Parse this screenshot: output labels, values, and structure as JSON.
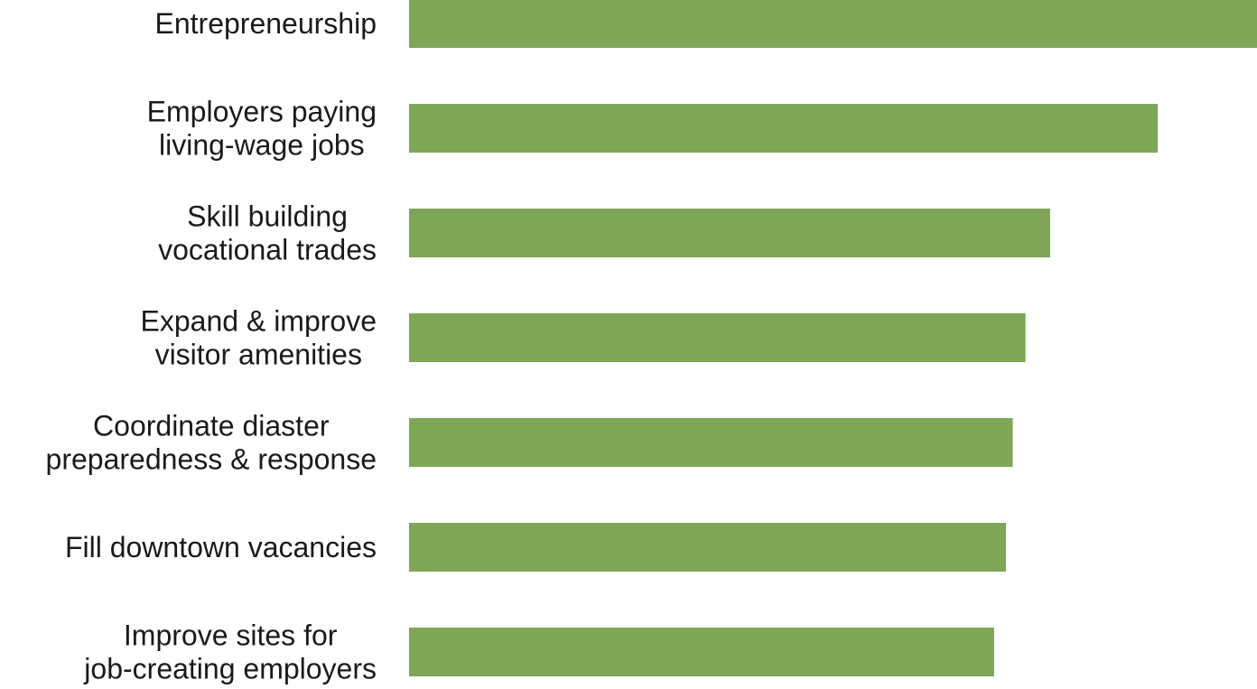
{
  "chart_data": {
    "type": "bar",
    "orientation": "horizontal",
    "categories": [
      [
        "Entrepreneurship"
      ],
      [
        "Employers paying",
        "living-wage jobs"
      ],
      [
        "Skill building",
        "vocational trades"
      ],
      [
        "Expand & improve",
        "visitor amenities"
      ],
      [
        "Coordinate diaster",
        "preparedness & response"
      ],
      [
        "Fill downtown vacancies"
      ],
      [
        "Improve sites for",
        "job-creating employers"
      ]
    ],
    "values": [
      100,
      88.3,
      75.6,
      72.7,
      71.2,
      70.4,
      69.0
    ],
    "xlim": [
      0,
      100
    ],
    "grid": false,
    "legend": "none",
    "title": "",
    "xlabel": "",
    "ylabel": "",
    "colors": {
      "bar": "#7ea656",
      "label": "#1a1a1a"
    }
  }
}
